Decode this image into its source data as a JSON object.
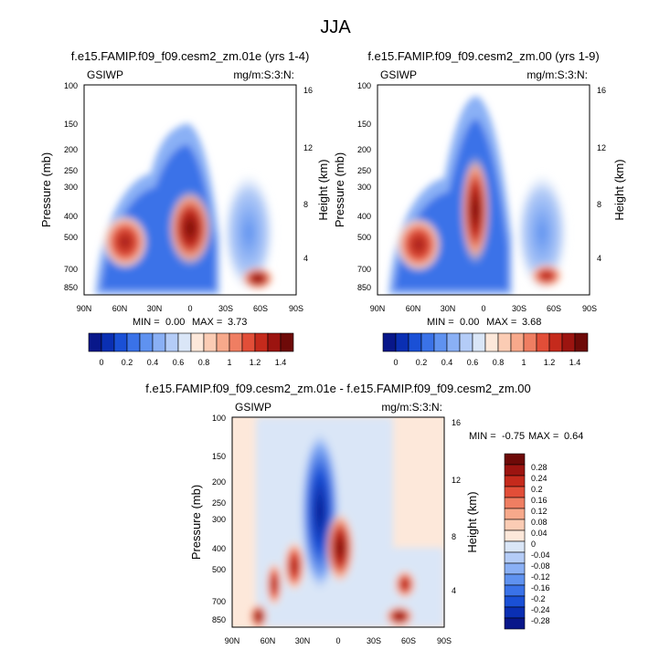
{
  "figure": {
    "season_title": "JJA",
    "colormap": [
      "#08178a",
      "#0a2fb3",
      "#1a50d6",
      "#3a72e8",
      "#5f92f0",
      "#8ab0f5",
      "#b4ccf7",
      "#dae6f7",
      "#fde8da",
      "#fbccb4",
      "#f7a98b",
      "#ef7e62",
      "#e24e38",
      "#c52a1c",
      "#9c1410",
      "#6e0a08"
    ]
  },
  "chart_data": [
    {
      "type": "heatmap",
      "title": "f.e15.FAMIP.f09_f09.cesm2_zm.01e (yrs 1-4)",
      "variable": "GSIWP",
      "units": "mg/m:S:3:N:",
      "xlabel": "",
      "ylabel": "Pressure (mb)",
      "y2label": "Height (km)",
      "xticks": [
        "90N",
        "60N",
        "30N",
        "0",
        "30S",
        "60S",
        "90S"
      ],
      "yticks": [
        "100",
        "150",
        "200",
        "250",
        "300",
        "400",
        "500",
        "700",
        "850"
      ],
      "y2ticks": [
        "4",
        "8",
        "12",
        "16"
      ],
      "min_label": "MIN =",
      "min_value": "0.00",
      "max_label": "MAX =",
      "max_value": "3.73",
      "colorbar_labels": [
        "0",
        "0.2",
        "0.4",
        "0.6",
        "0.8",
        "1",
        "1.2",
        "1.4"
      ],
      "features": [
        {
          "lat": 8,
          "p": 500,
          "value": 3.7
        },
        {
          "lat": 45,
          "p": 550,
          "value": 1.8
        },
        {
          "lat": -55,
          "p": 850,
          "value": 1.6
        }
      ]
    },
    {
      "type": "heatmap",
      "title": "f.e15.FAMIP.f09_f09.cesm2_zm.00 (yrs 1-9)",
      "variable": "GSIWP",
      "units": "mg/m:S:3:N:",
      "xlabel": "",
      "ylabel": "Pressure (mb)",
      "y2label": "Height (km)",
      "xticks": [
        "90N",
        "60N",
        "30N",
        "0",
        "30S",
        "60S",
        "90S"
      ],
      "yticks": [
        "100",
        "150",
        "200",
        "250",
        "300",
        "400",
        "500",
        "700",
        "850"
      ],
      "y2ticks": [
        "4",
        "8",
        "12",
        "16"
      ],
      "min_label": "MIN =",
      "min_value": "0.00",
      "max_label": "MAX =",
      "max_value": "3.68",
      "colorbar_labels": [
        "0",
        "0.2",
        "0.4",
        "0.6",
        "0.8",
        "1",
        "1.2",
        "1.4"
      ],
      "features": [
        {
          "lat": 8,
          "p": 500,
          "value": 3.6
        },
        {
          "lat": 45,
          "p": 550,
          "value": 1.7
        },
        {
          "lat": -55,
          "p": 850,
          "value": 1.0
        }
      ]
    },
    {
      "type": "heatmap",
      "title": "f.e15.FAMIP.f09_f09.cesm2_zm.01e - f.e15.FAMIP.f09_f09.cesm2_zm.00",
      "variable": "GSIWP",
      "units": "mg/m:S:3:N:",
      "xlabel": "",
      "ylabel": "Pressure (mb)",
      "y2label": "Height (km)",
      "xticks": [
        "90N",
        "60N",
        "30N",
        "0",
        "30S",
        "60S",
        "90S"
      ],
      "yticks": [
        "100",
        "150",
        "200",
        "250",
        "300",
        "400",
        "500",
        "700",
        "850"
      ],
      "y2ticks": [
        "4",
        "8",
        "12",
        "16"
      ],
      "min_label": "MIN =",
      "min_value": "-0.75",
      "max_label": "MAX =",
      "max_value": "0.64",
      "colorbar_labels": [
        "0.28",
        "0.24",
        "0.2",
        "0.16",
        "0.12",
        "0.08",
        "0.04",
        "0",
        "-0.04",
        "-0.08",
        "-0.12",
        "-0.16",
        "-0.2",
        "-0.24",
        "-0.28"
      ],
      "features": [
        {
          "lat": 15,
          "p": 300,
          "value": -0.75
        },
        {
          "lat": 0,
          "p": 500,
          "value": 0.64
        },
        {
          "lat": -55,
          "p": 850,
          "value": 0.5
        }
      ]
    }
  ]
}
